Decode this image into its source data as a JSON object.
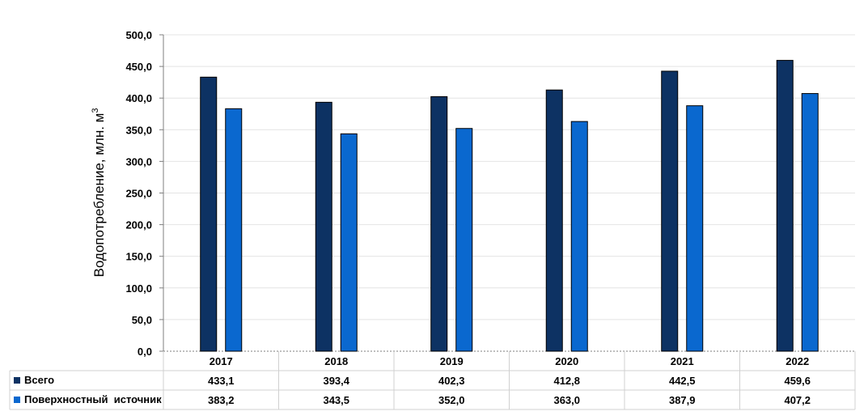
{
  "chart_data": {
    "type": "bar",
    "title": "",
    "xlabel": "",
    "ylabel": "Водопотребление, млн. м",
    "ylabel_superscript": "3",
    "ylim": [
      0,
      500
    ],
    "y_ticks": [
      "0,0",
      "50,0",
      "100,0",
      "150,0",
      "200,0",
      "250,0",
      "300,0",
      "350,0",
      "400,0",
      "450,0",
      "500,0"
    ],
    "categories": [
      "2017",
      "2018",
      "2019",
      "2020",
      "2021",
      "2022"
    ],
    "series": [
      {
        "name": "Всего",
        "color": "#0d3263",
        "values": [
          433.1,
          393.4,
          402.3,
          412.8,
          442.5,
          459.6
        ],
        "labels": [
          "433,1",
          "393,4",
          "402,3",
          "412,8",
          "442,5",
          "459,6"
        ]
      },
      {
        "name": "Поверхностный  источник",
        "color": "#0a68cf",
        "values": [
          383.2,
          343.5,
          352.0,
          363.0,
          387.9,
          407.2
        ],
        "labels": [
          "383,2",
          "343,5",
          "352,0",
          "363,0",
          "387,9",
          "407,2"
        ]
      }
    ],
    "grid": true,
    "legend": "data-table"
  }
}
